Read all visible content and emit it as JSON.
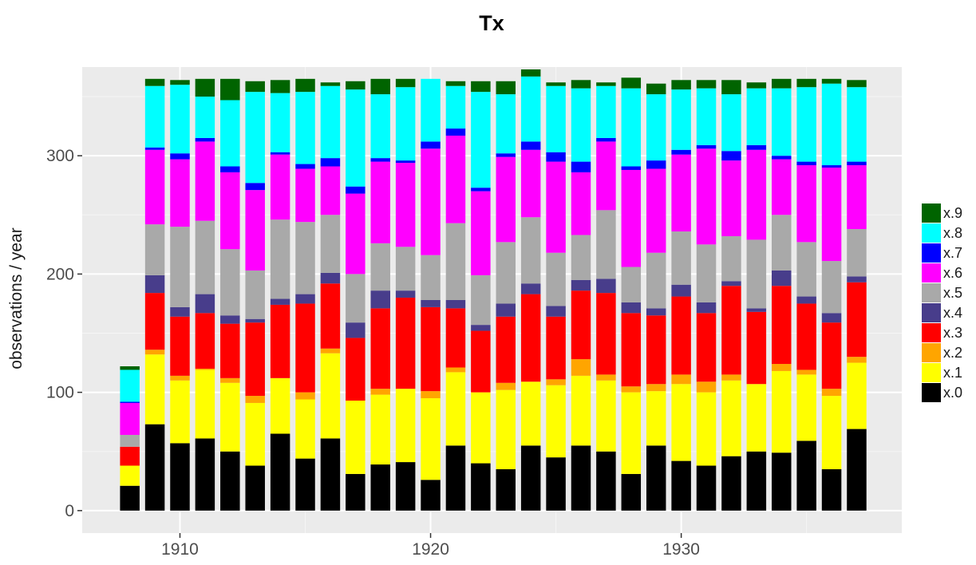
{
  "chart_data": {
    "type": "bar",
    "stacked": true,
    "title": "Tx",
    "xlabel": "",
    "ylabel": "observations / year",
    "xlim": [
      1906.1,
      1938.8
    ],
    "ylim": [
      -19,
      375
    ],
    "x_ticks": [
      1910,
      1920,
      1930
    ],
    "y_ticks": [
      0,
      100,
      200,
      300
    ],
    "grid": true,
    "legend_position": "right",
    "x": [
      1908,
      1909,
      1910,
      1911,
      1912,
      1913,
      1914,
      1915,
      1916,
      1917,
      1918,
      1919,
      1920,
      1921,
      1922,
      1923,
      1924,
      1925,
      1926,
      1927,
      1928,
      1929,
      1930,
      1931,
      1932,
      1933,
      1934,
      1935,
      1936,
      1937
    ],
    "series": [
      {
        "name": "x.0",
        "color": "#000000",
        "values": [
          21,
          73,
          57,
          61,
          50,
          38,
          65,
          44,
          61,
          31,
          39,
          41,
          26,
          55,
          40,
          35,
          55,
          45,
          55,
          50,
          31,
          55,
          42,
          38,
          46,
          50,
          49,
          59,
          35,
          69
        ]
      },
      {
        "name": "x.1",
        "color": "#FFFF00",
        "values": [
          17,
          59,
          53,
          58,
          58,
          53,
          47,
          50,
          72,
          62,
          59,
          62,
          69,
          62,
          60,
          67,
          54,
          61,
          59,
          60,
          69,
          46,
          65,
          62,
          64,
          57,
          69,
          56,
          62,
          56
        ]
      },
      {
        "name": "x.2",
        "color": "#FFA500",
        "values": [
          0,
          4,
          4,
          1,
          4,
          6,
          0,
          6,
          4,
          0,
          5,
          0,
          6,
          4,
          0,
          6,
          0,
          5,
          14,
          5,
          5,
          6,
          8,
          9,
          5,
          0,
          6,
          4,
          6,
          5
        ]
      },
      {
        "name": "x.3",
        "color": "#FF0000",
        "values": [
          16,
          48,
          50,
          47,
          46,
          62,
          62,
          75,
          55,
          53,
          68,
          77,
          71,
          50,
          52,
          56,
          74,
          53,
          58,
          69,
          62,
          58,
          66,
          58,
          75,
          61,
          66,
          56,
          56,
          63
        ]
      },
      {
        "name": "x.4",
        "color": "#483D8B",
        "values": [
          0,
          15,
          8,
          16,
          7,
          3,
          5,
          8,
          9,
          13,
          15,
          6,
          6,
          7,
          5,
          11,
          9,
          9,
          9,
          12,
          9,
          6,
          10,
          9,
          4,
          3,
          13,
          6,
          8,
          5
        ]
      },
      {
        "name": "x.5",
        "color": "#A9A9A9",
        "values": [
          10,
          43,
          68,
          62,
          56,
          41,
          67,
          61,
          49,
          41,
          40,
          37,
          38,
          65,
          42,
          52,
          56,
          45,
          38,
          58,
          30,
          47,
          45,
          49,
          38,
          58,
          47,
          46,
          44,
          40
        ]
      },
      {
        "name": "x.6",
        "color": "#FF00FF",
        "values": [
          27,
          63,
          57,
          67,
          65,
          68,
          55,
          45,
          41,
          68,
          69,
          71,
          90,
          74,
          71,
          72,
          57,
          77,
          53,
          58,
          82,
          71,
          65,
          81,
          64,
          76,
          47,
          65,
          79,
          54
        ]
      },
      {
        "name": "x.7",
        "color": "#0000FF",
        "values": [
          1,
          2,
          5,
          3,
          5,
          6,
          2,
          4,
          7,
          6,
          3,
          2,
          6,
          6,
          3,
          3,
          7,
          8,
          9,
          3,
          3,
          7,
          4,
          3,
          8,
          4,
          3,
          3,
          2,
          3
        ]
      },
      {
        "name": "x.8",
        "color": "#00FFFF",
        "values": [
          27,
          52,
          58,
          35,
          56,
          77,
          50,
          61,
          61,
          82,
          54,
          62,
          53,
          36,
          81,
          50,
          55,
          56,
          62,
          44,
          66,
          56,
          51,
          48,
          48,
          48,
          57,
          63,
          69,
          63
        ]
      },
      {
        "name": "x.9",
        "color": "#006400",
        "values": [
          3,
          6,
          4,
          15,
          18,
          9,
          11,
          11,
          3,
          7,
          13,
          7,
          0,
          4,
          9,
          11,
          6,
          3,
          7,
          3,
          9,
          9,
          8,
          7,
          12,
          5,
          8,
          7,
          4,
          6
        ]
      }
    ]
  }
}
